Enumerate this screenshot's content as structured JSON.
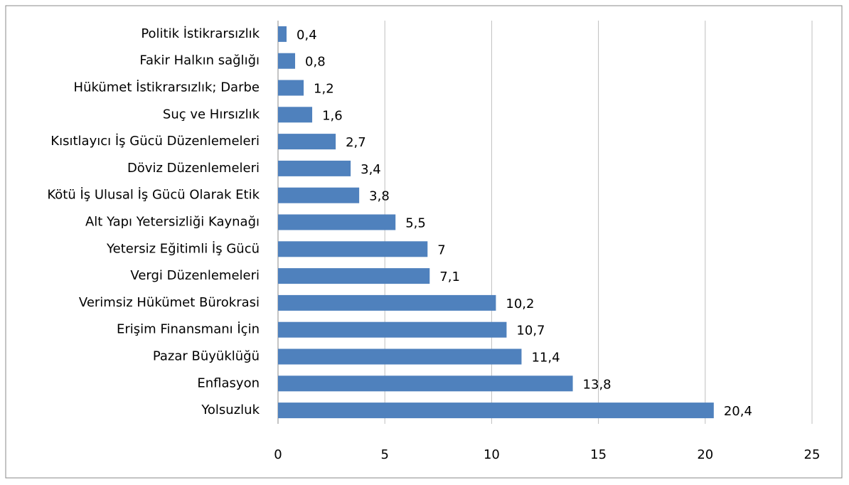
{
  "chart_data": {
    "type": "bar",
    "orientation": "horizontal",
    "categories": [
      "Politik İstikrarsızlık",
      "Fakir Halkın sağlığı",
      "Hükümet İstikrarsızlık; Darbe",
      "Suç ve Hırsızlık",
      "Kısıtlayıcı İş Gücü Düzenlemeleri",
      "Döviz Düzenlemeleri",
      "Kötü İş Ulusal İş Gücü Olarak Etik",
      "Alt Yapı Yetersizliği Kaynağı",
      "Yetersiz Eğitimli İş Gücü",
      "Vergi Düzenlemeleri",
      "Verimsiz Hükümet Bürokrasi",
      "Erişim Finansmanı İçin",
      "Pazar Büyüklüğü",
      "Enflasyon",
      "Yolsuzluk"
    ],
    "values": [
      0.4,
      0.8,
      1.2,
      1.6,
      2.7,
      3.4,
      3.8,
      5.5,
      7,
      7.1,
      10.2,
      10.7,
      11.4,
      13.8,
      20.4
    ],
    "value_labels": [
      "0,4",
      "0,8",
      "1,2",
      "1,6",
      "2,7",
      "3,4",
      "3,8",
      "5,5",
      "7",
      "7,1",
      "10,2",
      "10,7",
      "11,4",
      "13,8",
      "20,4"
    ],
    "color": "#4f81bd",
    "xlim": [
      0,
      25
    ],
    "xticks": [
      0,
      5,
      10,
      15,
      20,
      25
    ],
    "grid": true
  }
}
